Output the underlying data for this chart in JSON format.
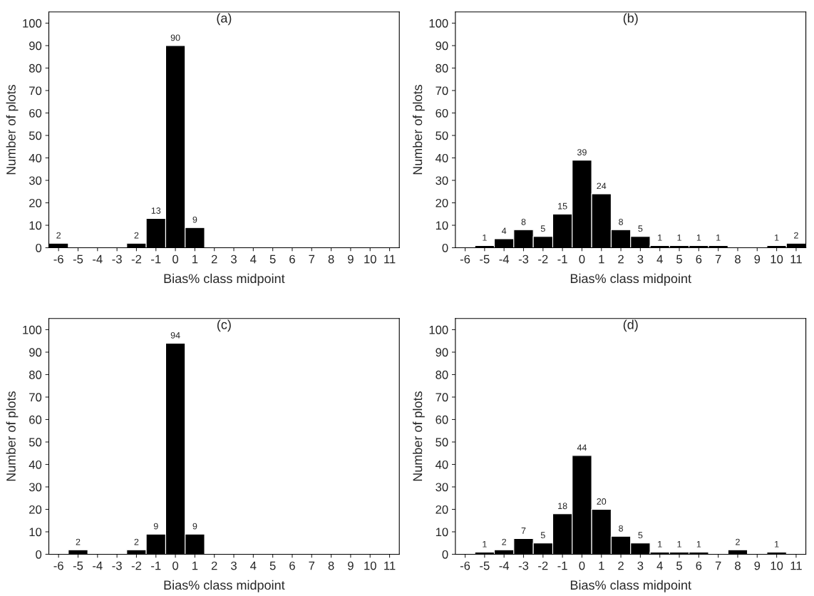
{
  "chart_data": [
    {
      "type": "bar",
      "title": "(a)",
      "xlabel": "Bias% class midpoint",
      "ylabel": "Number of plots",
      "categories": [
        "-6",
        "-5",
        "-4",
        "-3",
        "-2",
        "-1",
        "0",
        "1",
        "2",
        "3",
        "4",
        "5",
        "6",
        "7",
        "8",
        "9",
        "10",
        "11"
      ],
      "values": [
        2,
        null,
        null,
        null,
        2,
        13,
        90,
        9,
        null,
        null,
        null,
        null,
        null,
        null,
        null,
        null,
        null,
        null
      ],
      "color": "#000000",
      "ylim": [
        0,
        105
      ],
      "yticks": [
        0,
        10,
        20,
        30,
        40,
        50,
        60,
        70,
        80,
        90,
        100
      ],
      "data_labels": true,
      "grid": false,
      "legend": false
    },
    {
      "type": "bar",
      "title": "(b)",
      "xlabel": "Bias% class midpoint",
      "ylabel": "Number of plots",
      "categories": [
        "-6",
        "-5",
        "-4",
        "-3",
        "-2",
        "-1",
        "0",
        "1",
        "2",
        "3",
        "4",
        "5",
        "6",
        "7",
        "8",
        "9",
        "10",
        "11"
      ],
      "values": [
        null,
        1,
        4,
        8,
        5,
        15,
        39,
        24,
        8,
        5,
        1,
        1,
        1,
        1,
        null,
        null,
        1,
        2
      ],
      "color": "#000000",
      "ylim": [
        0,
        105
      ],
      "yticks": [
        0,
        10,
        20,
        30,
        40,
        50,
        60,
        70,
        80,
        90,
        100
      ],
      "data_labels": true,
      "grid": false,
      "legend": false
    },
    {
      "type": "bar",
      "title": "(c)",
      "xlabel": "Bias% class midpoint",
      "ylabel": "Number of plots",
      "categories": [
        "-6",
        "-5",
        "-4",
        "-3",
        "-2",
        "-1",
        "0",
        "1",
        "2",
        "3",
        "4",
        "5",
        "6",
        "7",
        "8",
        "9",
        "10",
        "11"
      ],
      "values": [
        null,
        2,
        null,
        null,
        2,
        9,
        94,
        9,
        null,
        null,
        null,
        null,
        null,
        null,
        null,
        null,
        null,
        null
      ],
      "color": "#000000",
      "ylim": [
        0,
        105
      ],
      "yticks": [
        0,
        10,
        20,
        30,
        40,
        50,
        60,
        70,
        80,
        90,
        100
      ],
      "data_labels": true,
      "grid": false,
      "legend": false
    },
    {
      "type": "bar",
      "title": "(d)",
      "xlabel": "Bias% class midpoint",
      "ylabel": "Number of plots",
      "categories": [
        "-6",
        "-5",
        "-4",
        "-3",
        "-2",
        "-1",
        "0",
        "1",
        "2",
        "3",
        "4",
        "5",
        "6",
        "7",
        "8",
        "9",
        "10",
        "11"
      ],
      "values": [
        null,
        1,
        2,
        7,
        5,
        18,
        44,
        20,
        8,
        5,
        1,
        1,
        1,
        null,
        2,
        null,
        1,
        null
      ],
      "color": "#000000",
      "ylim": [
        0,
        105
      ],
      "yticks": [
        0,
        10,
        20,
        30,
        40,
        50,
        60,
        70,
        80,
        90,
        100
      ],
      "data_labels": true,
      "grid": false,
      "legend": false
    }
  ]
}
